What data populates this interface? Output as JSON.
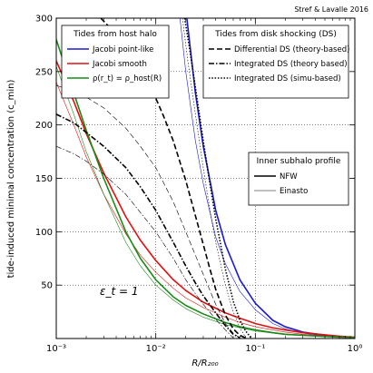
{
  "chart_data": {
    "type": "line",
    "credit": "Stref & Lavalle 2016",
    "annotation": "ε_t = 1",
    "xlabel": "R/R₂₀₀",
    "ylabel": "tide-induced minimal concentration (c_min)",
    "xscale": "log",
    "xlim": [
      0.001,
      1
    ],
    "ylim": [
      0,
      300
    ],
    "xticks": [
      {
        "value": 0.001,
        "label": "10⁻³"
      },
      {
        "value": 0.01,
        "label": "10⁻²"
      },
      {
        "value": 0.1,
        "label": "10⁻¹"
      },
      {
        "value": 1,
        "label": "10⁰"
      }
    ],
    "yticks": [
      50,
      100,
      150,
      200,
      250,
      300
    ],
    "grid": true,
    "legends": [
      {
        "title": "Tides from host halo",
        "placement": "top-left",
        "entries": [
          {
            "label": "Jacobi point-like",
            "color": "#1a1ad0",
            "style": "solid"
          },
          {
            "label": "Jacobi smooth",
            "color": "#e01010",
            "style": "solid"
          },
          {
            "label": "ρ(r_t) = ρ_host(R)",
            "color": "#1a8a1a",
            "style": "solid"
          }
        ]
      },
      {
        "title": "Tides from disk shocking (DS)",
        "placement": "top-right",
        "entries": [
          {
            "label": "Differential DS (theory-based)",
            "color": "#000000",
            "style": "dashed"
          },
          {
            "label": "Integrated DS (theory based)",
            "color": "#000000",
            "style": "dashdot"
          },
          {
            "label": "Integrated DS (simu-based)",
            "color": "#000000",
            "style": "dotted"
          }
        ]
      },
      {
        "title": "Inner subhalo profile",
        "placement": "center-right",
        "entries": [
          {
            "label": "NFW",
            "color": "#000000",
            "style": "thick"
          },
          {
            "label": "Einasto",
            "color": "#000000",
            "style": "thin"
          }
        ]
      }
    ],
    "series": [
      {
        "id": "jacobi-point-nfw",
        "color": "#1a1ad0",
        "style": "solid",
        "width": 1.6,
        "x": [
          0.0205,
          0.025,
          0.03,
          0.04,
          0.05,
          0.07,
          0.1,
          0.15,
          0.2,
          0.3,
          0.5,
          0.7,
          1.0
        ],
        "y": [
          300,
          230,
          180,
          120,
          88,
          55,
          33,
          17,
          11,
          6,
          3,
          1.6,
          1
        ]
      },
      {
        "id": "jacobi-point-einasto",
        "color": "#1a1ad0",
        "style": "solid",
        "width": 0.6,
        "x": [
          0.0175,
          0.02,
          0.025,
          0.03,
          0.04,
          0.05,
          0.07,
          0.1,
          0.15,
          0.2,
          0.3,
          0.5,
          1.0
        ],
        "y": [
          300,
          250,
          185,
          145,
          95,
          70,
          44,
          27,
          14,
          9,
          5,
          2.5,
          1
        ]
      },
      {
        "id": "jacobi-smooth-nfw",
        "color": "#e01010",
        "style": "solid",
        "width": 1.6,
        "x": [
          0.001,
          0.0015,
          0.002,
          0.003,
          0.005,
          0.007,
          0.01,
          0.015,
          0.02,
          0.03,
          0.05,
          0.07,
          0.1,
          0.15,
          0.2,
          0.3,
          0.5,
          0.7,
          1.0
        ],
        "y": [
          260,
          222,
          192,
          155,
          114,
          92,
          73,
          55,
          45,
          34,
          24,
          19,
          14,
          10,
          8,
          5.5,
          3.5,
          2.2,
          1.2
        ]
      },
      {
        "id": "jacobi-smooth-einasto",
        "color": "#e01010",
        "style": "solid",
        "width": 0.6,
        "x": [
          0.001,
          0.0015,
          0.002,
          0.003,
          0.005,
          0.007,
          0.01,
          0.015,
          0.02,
          0.03,
          0.05,
          0.07,
          0.1,
          0.15,
          0.2,
          0.3,
          0.5,
          1.0
        ],
        "y": [
          240,
          200,
          170,
          135,
          98,
          78,
          62,
          47,
          38,
          29,
          20,
          15,
          11,
          8,
          6,
          4,
          2.5,
          1
        ]
      },
      {
        "id": "rho-rt-nfw",
        "color": "#1a8a1a",
        "style": "solid",
        "width": 1.6,
        "x": [
          0.001,
          0.0015,
          0.002,
          0.003,
          0.005,
          0.007,
          0.01,
          0.015,
          0.02,
          0.03,
          0.05,
          0.07,
          0.1,
          0.15,
          0.2,
          0.3,
          0.5,
          0.7,
          1.0
        ],
        "y": [
          280,
          230,
          195,
          150,
          100,
          75,
          55,
          39,
          31,
          23,
          15,
          11,
          8,
          5.5,
          4,
          3,
          2,
          1.3,
          1
        ]
      },
      {
        "id": "rho-rt-einasto",
        "color": "#1a8a1a",
        "style": "solid",
        "width": 0.6,
        "x": [
          0.001,
          0.0015,
          0.002,
          0.003,
          0.005,
          0.007,
          0.01,
          0.015,
          0.02,
          0.03,
          0.05,
          0.07,
          0.1,
          0.15,
          0.2,
          0.5,
          1.0
        ],
        "y": [
          255,
          210,
          175,
          135,
          90,
          68,
          50,
          36,
          28,
          20,
          13,
          10,
          7,
          5,
          3.5,
          1.8,
          1
        ]
      },
      {
        "id": "differential-ds-nfw",
        "color": "#000000",
        "style": "dashed",
        "width": 1.6,
        "x": [
          0.0028,
          0.004,
          0.006,
          0.008,
          0.01,
          0.012,
          0.015,
          0.02,
          0.025,
          0.03,
          0.035,
          0.04,
          0.05,
          0.06,
          0.07,
          0.08
        ],
        "y": [
          300,
          285,
          262,
          243,
          225,
          208,
          185,
          148,
          115,
          88,
          65,
          46,
          22,
          9,
          3,
          0.5
        ]
      },
      {
        "id": "differential-ds-einasto",
        "color": "#000000",
        "style": "dashed",
        "width": 0.6,
        "x": [
          0.001,
          0.0015,
          0.002,
          0.003,
          0.005,
          0.007,
          0.01,
          0.015,
          0.02,
          0.025,
          0.03,
          0.04,
          0.05,
          0.06,
          0.07
        ],
        "y": [
          237,
          232,
          226,
          216,
          197,
          180,
          160,
          128,
          100,
          78,
          60,
          32,
          14,
          5,
          0.5
        ]
      },
      {
        "id": "integrated-ds-theory-nfw",
        "color": "#000000",
        "style": "dashdot",
        "width": 1.6,
        "x": [
          0.001,
          0.0015,
          0.002,
          0.003,
          0.005,
          0.007,
          0.01,
          0.015,
          0.02,
          0.025,
          0.03,
          0.04,
          0.05,
          0.06,
          0.07
        ],
        "y": [
          210,
          202,
          193,
          180,
          160,
          142,
          120,
          90,
          68,
          52,
          40,
          24,
          12,
          4,
          0.5
        ]
      },
      {
        "id": "integrated-ds-theory-einasto",
        "color": "#000000",
        "style": "dashdot",
        "width": 0.6,
        "x": [
          0.001,
          0.0015,
          0.002,
          0.003,
          0.005,
          0.007,
          0.01,
          0.015,
          0.02,
          0.025,
          0.03,
          0.04,
          0.05,
          0.06
        ],
        "y": [
          180,
          173,
          166,
          154,
          135,
          118,
          100,
          75,
          55,
          42,
          32,
          18,
          8,
          0.5
        ]
      },
      {
        "id": "integrated-ds-simu-nfw",
        "color": "#000000",
        "style": "dotted",
        "width": 1.6,
        "x": [
          0.0195,
          0.022,
          0.025,
          0.03,
          0.035,
          0.04,
          0.05,
          0.06,
          0.07,
          0.08,
          0.09
        ],
        "y": [
          300,
          270,
          235,
          185,
          145,
          112,
          65,
          35,
          17,
          7,
          1
        ]
      },
      {
        "id": "integrated-ds-simu-einasto",
        "color": "#000000",
        "style": "dotted",
        "width": 0.6,
        "x": [
          0.0185,
          0.021,
          0.025,
          0.03,
          0.035,
          0.04,
          0.05,
          0.06,
          0.07,
          0.08
        ],
        "y": [
          300,
          260,
          210,
          160,
          120,
          90,
          50,
          25,
          10,
          1
        ]
      }
    ]
  }
}
